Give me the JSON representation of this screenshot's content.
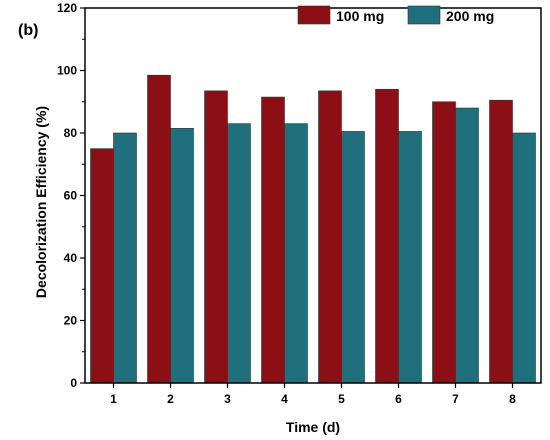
{
  "chart_data": {
    "type": "bar",
    "panel_label": "(b)",
    "xlabel": "Time (d)",
    "ylabel": "Decolorization Efficiency (%)",
    "categories": [
      "1",
      "2",
      "3",
      "4",
      "5",
      "6",
      "7",
      "8"
    ],
    "ylim": [
      0,
      120
    ],
    "yticks": [
      0,
      20,
      40,
      60,
      80,
      100,
      120
    ],
    "grid": false,
    "legend_position": "top-right",
    "series": [
      {
        "name": "100 mg",
        "color": "#8b0f14",
        "values": [
          75,
          98.5,
          93.5,
          91.5,
          93.5,
          94,
          90,
          90.5
        ]
      },
      {
        "name": "200 mg",
        "color": "#1f6f7c",
        "values": [
          80,
          81.5,
          83,
          83,
          80.5,
          80.5,
          88,
          80
        ]
      }
    ]
  }
}
